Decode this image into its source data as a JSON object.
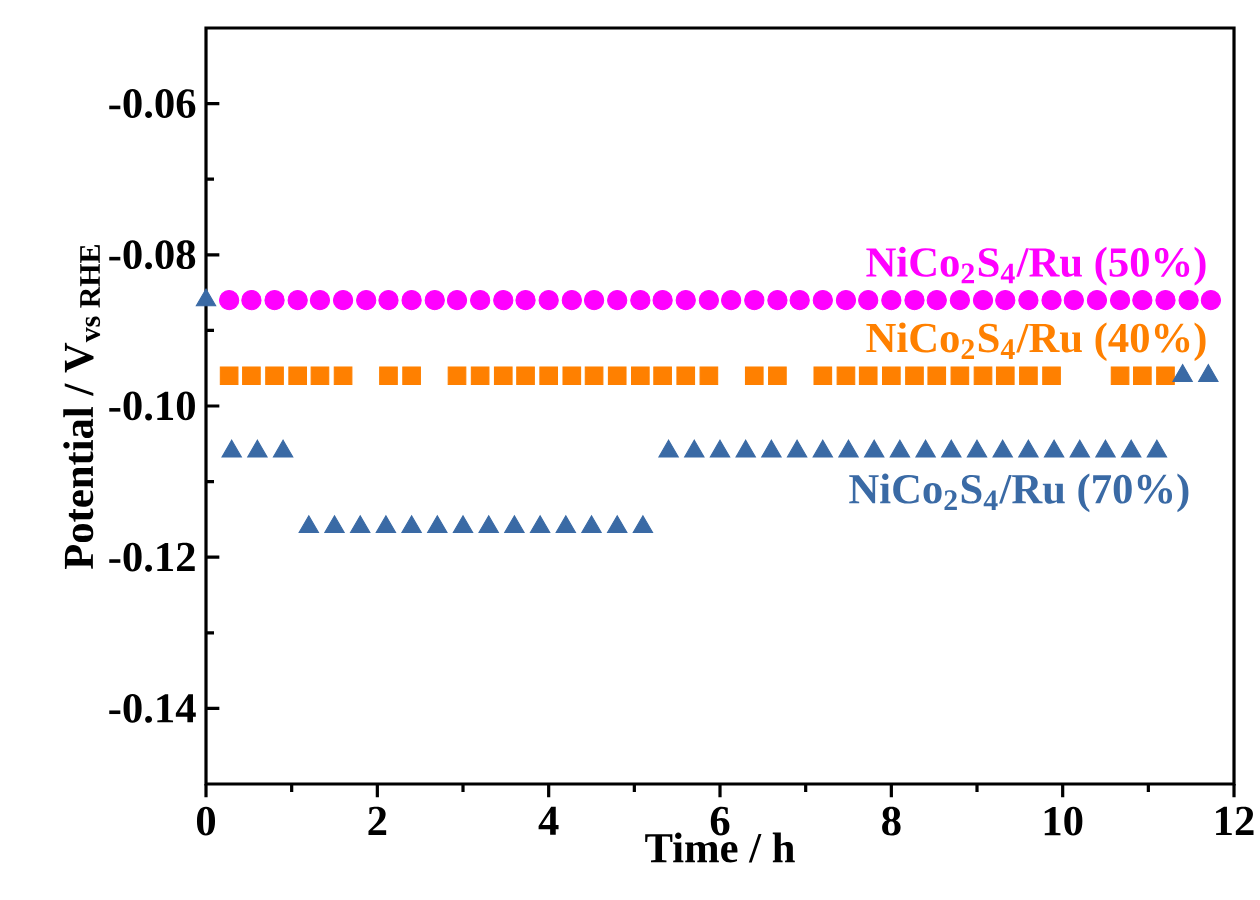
{
  "chart_data": {
    "type": "scatter",
    "xlabel": "Time / h",
    "ylabel": "\\text{Potential / V}_{\\text{vs RHE}}",
    "xlim": [
      0,
      12
    ],
    "ylim": [
      -0.15,
      -0.05
    ],
    "xticks": [
      0,
      2,
      4,
      6,
      8,
      10,
      12
    ],
    "yticks": [
      -0.14,
      -0.12,
      {
        "value": -0.1,
        "label": "-0.10"
      },
      -0.08,
      -0.06
    ],
    "grid": false,
    "legend": false,
    "series": [
      {
        "name": "NiCo$_{2}$S$_{4}$/Ru (50%)",
        "color": "#ff00ff",
        "marker": "circle",
        "x": [
          0.27,
          0.53,
          0.8,
          1.07,
          1.33,
          1.6,
          1.87,
          2.13,
          2.4,
          2.67,
          2.93,
          3.2,
          3.47,
          3.73,
          4,
          4.27,
          4.53,
          4.8,
          5.07,
          5.33,
          5.6,
          5.87,
          6.13,
          6.4,
          6.67,
          6.93,
          7.2,
          7.47,
          7.73,
          8,
          8.27,
          8.53,
          8.8,
          9.07,
          9.33,
          9.6,
          9.87,
          10.13,
          10.4,
          10.67,
          10.93,
          11.2,
          11.47,
          11.73
        ],
        "values": [
          -0.086,
          -0.086,
          -0.086,
          -0.086,
          -0.086,
          -0.086,
          -0.086,
          -0.086,
          -0.086,
          -0.086,
          -0.086,
          -0.086,
          -0.086,
          -0.086,
          -0.086,
          -0.086,
          -0.086,
          -0.086,
          -0.086,
          -0.086,
          -0.086,
          -0.086,
          -0.086,
          -0.086,
          -0.086,
          -0.086,
          -0.086,
          -0.086,
          -0.086,
          -0.086,
          -0.086,
          -0.086,
          -0.086,
          -0.086,
          -0.086,
          -0.086,
          -0.086,
          -0.086,
          -0.086,
          -0.086,
          -0.086,
          -0.086,
          -0.086,
          -0.086
        ]
      },
      {
        "name": "NiCo$_{2}$S$_{4}$/Ru (40%)",
        "color": "#ff8000",
        "marker": "square",
        "x": [
          0.27,
          0.53,
          0.8,
          1.07,
          1.33,
          1.6,
          2.13,
          2.4,
          2.93,
          3.2,
          3.47,
          3.73,
          4,
          4.27,
          4.53,
          4.8,
          5.07,
          5.33,
          5.6,
          5.87,
          6.4,
          6.67,
          7.2,
          7.47,
          7.73,
          8,
          8.27,
          8.53,
          8.8,
          9.07,
          9.33,
          9.6,
          9.87,
          10.67,
          10.93,
          11.2
        ],
        "values": [
          -0.096,
          -0.096,
          -0.096,
          -0.096,
          -0.096,
          -0.096,
          -0.096,
          -0.096,
          -0.096,
          -0.096,
          -0.096,
          -0.096,
          -0.096,
          -0.096,
          -0.096,
          -0.096,
          -0.096,
          -0.096,
          -0.096,
          -0.096,
          -0.096,
          -0.096,
          -0.096,
          -0.096,
          -0.096,
          -0.096,
          -0.096,
          -0.096,
          -0.096,
          -0.096,
          -0.096,
          -0.096,
          -0.096,
          -0.096,
          -0.096,
          -0.096
        ]
      },
      {
        "name": "NiCo$_{2}$S$_{4}$/Ru (70%)",
        "color": "#3a6aa5",
        "marker": "triangle",
        "x": [
          0,
          0.3,
          0.6,
          0.9,
          1.2,
          1.5,
          1.8,
          2.1,
          2.4,
          2.7,
          3,
          3.3,
          3.6,
          3.9,
          4.2,
          4.5,
          4.8,
          5.1,
          5.4,
          5.7,
          6,
          6.3,
          6.6,
          6.9,
          7.2,
          7.5,
          7.8,
          8.1,
          8.4,
          8.7,
          9,
          9.3,
          9.6,
          9.9,
          10.2,
          10.5,
          10.8,
          11.1,
          11.4,
          11.7
        ],
        "values": [
          -0.086,
          -0.106,
          -0.106,
          -0.106,
          -0.116,
          -0.116,
          -0.116,
          -0.116,
          -0.116,
          -0.116,
          -0.116,
          -0.116,
          -0.116,
          -0.116,
          -0.116,
          -0.116,
          -0.116,
          -0.116,
          -0.106,
          -0.106,
          -0.106,
          -0.106,
          -0.106,
          -0.106,
          -0.106,
          -0.106,
          -0.106,
          -0.106,
          -0.106,
          -0.106,
          -0.106,
          -0.106,
          -0.106,
          -0.106,
          -0.106,
          -0.106,
          -0.106,
          -0.106,
          -0.096,
          -0.096
        ]
      }
    ]
  }
}
